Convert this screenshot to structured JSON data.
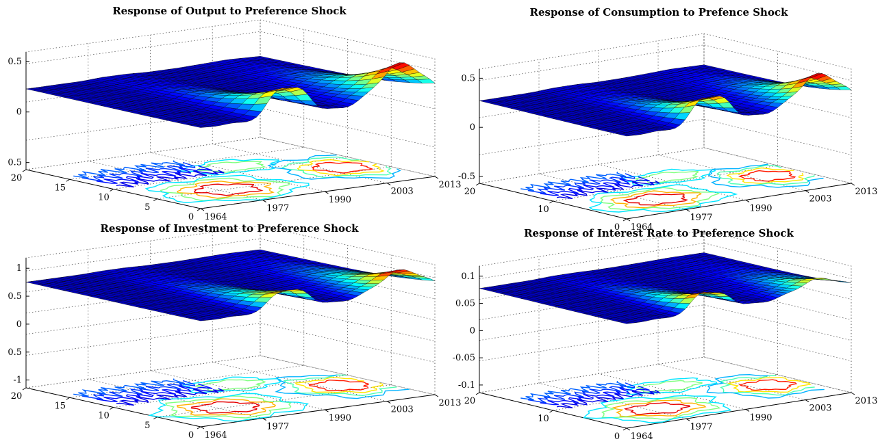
{
  "figure": {
    "colormap": [
      "#00008f",
      "#0000ff",
      "#007fff",
      "#00ffff",
      "#7fff7f",
      "#ffff00",
      "#ff7f00",
      "#ff0000",
      "#7f0000"
    ]
  },
  "chart_data": [
    {
      "type": "surface",
      "title": "Response of Output to Preference Shock",
      "x_ticks": [
        "1964",
        "1977",
        "1990",
        "2003",
        "2013"
      ],
      "y_ticks": [
        "0",
        "5",
        "10",
        "15",
        "20"
      ],
      "z_ticks": [
        "0.5",
        "0",
        "0.5"
      ],
      "zlim": [
        -0.5,
        0.75
      ],
      "ylim": [
        0,
        20
      ],
      "xlim": [
        1964,
        2013
      ],
      "grid": true,
      "contour_projection": true,
      "peaks": [
        {
          "year": 1980,
          "value": 0.65
        },
        {
          "year": 1985,
          "value": 0.45
        },
        {
          "year": 2006,
          "value": 0.75
        }
      ]
    },
    {
      "type": "surface",
      "title": "Response of Consumption to Prefence Shock",
      "x_ticks": [
        "1964",
        "1977",
        "1990",
        "2003",
        "2013"
      ],
      "y_ticks": [
        "0",
        "10",
        "20"
      ],
      "z_ticks": [
        "0.5",
        "0",
        "-0.5"
      ],
      "zlim": [
        -0.5,
        0.6
      ],
      "ylim": [
        0,
        20
      ],
      "xlim": [
        1964,
        2013
      ],
      "grid": true,
      "contour_projection": true,
      "peaks": [
        {
          "year": 1980,
          "value": 0.55
        },
        {
          "year": 1985,
          "value": 0.4
        },
        {
          "year": 2006,
          "value": 0.6
        }
      ]
    },
    {
      "type": "surface",
      "title": "Response of Investment to Preference Shock",
      "x_ticks": [
        "1964",
        "1977",
        "1990",
        "2003",
        "2013"
      ],
      "y_ticks": [
        "0",
        "5",
        "10",
        "15",
        "20"
      ],
      "z_ticks": [
        "1",
        "0.5",
        "0",
        "0.5",
        "-1"
      ],
      "zlim": [
        -1,
        1.2
      ],
      "ylim": [
        0,
        20
      ],
      "xlim": [
        1964,
        2013
      ],
      "grid": true,
      "contour_projection": true,
      "peaks": [
        {
          "year": 1980,
          "value": 1.0
        },
        {
          "year": 1985,
          "value": 0.75
        },
        {
          "year": 2006,
          "value": 1.15
        }
      ]
    },
    {
      "type": "surface",
      "title": "Response of Interest Rate to Preference Shock",
      "x_ticks": [
        "1964",
        "1977",
        "1990",
        "2003",
        "2013"
      ],
      "y_ticks": [
        "0",
        "10",
        "20"
      ],
      "z_ticks": [
        "0.1",
        "0.05",
        "0",
        "-0.05",
        "-0.1"
      ],
      "zlim": [
        -0.1,
        0.12
      ],
      "ylim": [
        0,
        20
      ],
      "xlim": [
        1964,
        2013
      ],
      "grid": true,
      "contour_projection": true,
      "peaks": [
        {
          "year": 1980,
          "value": 0.12
        },
        {
          "year": 1985,
          "value": 0.07
        },
        {
          "year": 2006,
          "value": 0.08
        }
      ]
    }
  ]
}
